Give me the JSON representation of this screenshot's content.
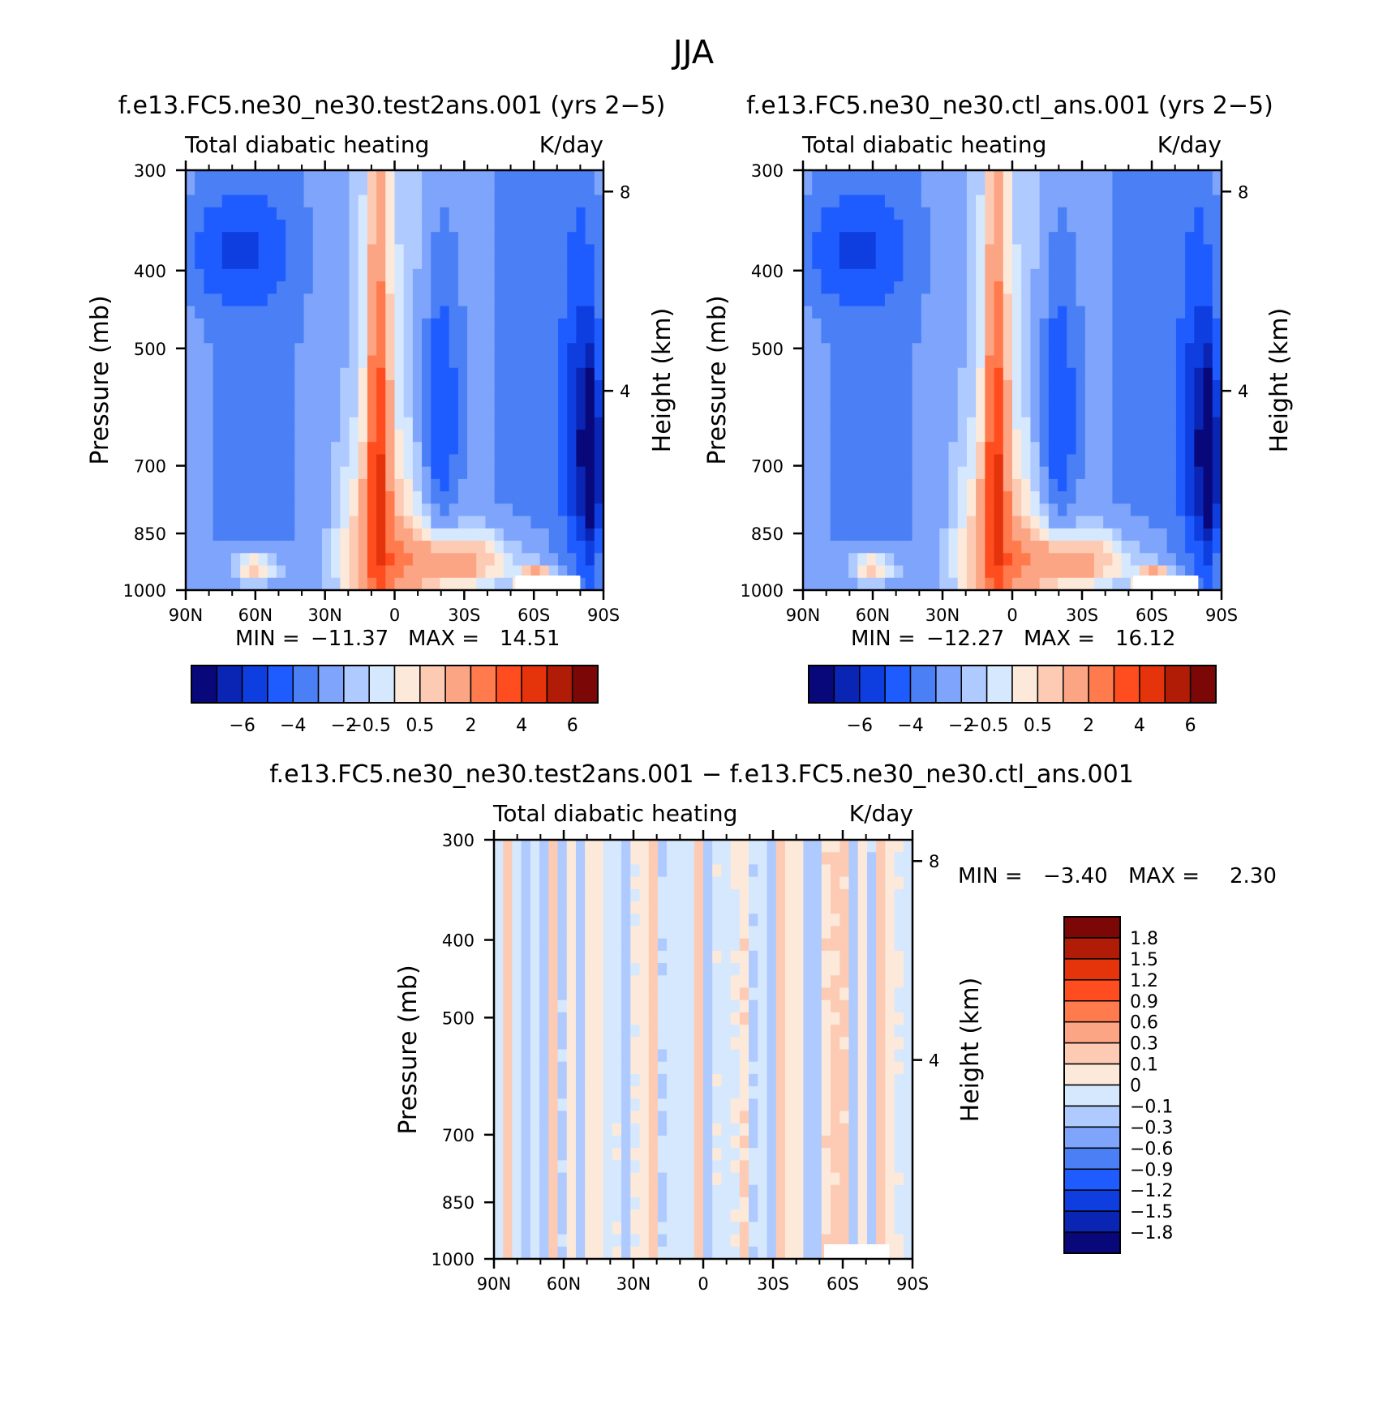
{
  "figure": {
    "title": "JJA"
  },
  "colors": {
    "ramp16": [
      "#08087a",
      "#0a25b4",
      "#0e3ee0",
      "#1f5cff",
      "#4a7ff5",
      "#7ea5fb",
      "#aecaff",
      "#d5e8fd",
      "#fde9da",
      "#fdcbb3",
      "#fba585",
      "#ff7b4d",
      "#ff4d1f",
      "#e5330c",
      "#b01c06",
      "#7c0707"
    ],
    "diff14": [
      "#08087a",
      "#0a25b4",
      "#0e3ee0",
      "#1f5cff",
      "#4a7ff5",
      "#7ea5fb",
      "#aecaff",
      "#d5e8fd",
      "#fde9da",
      "#fdcbb3",
      "#fba585",
      "#ff7b4d",
      "#ff4d1f",
      "#b01c06"
    ]
  },
  "chart_data": [
    {
      "type": "heatmap",
      "id": "test",
      "title": "f.e13.FC5.ne30_ne30.test2ans.001 (yrs 2−5)",
      "subtitle_left": "Total diabatic heating",
      "subtitle_right": "K/day",
      "ylabel": "Pressure (mb)",
      "ylabel_right": "Height (km)",
      "y_ticks": [
        "300",
        "400",
        "500",
        "700",
        "850",
        "1000"
      ],
      "y_tick_values": [
        300,
        400,
        500,
        700,
        850,
        1000
      ],
      "right_ticks": [
        "8",
        "4"
      ],
      "right_tick_values": [
        8,
        4
      ],
      "x_ticks": [
        "90N",
        "60N",
        "30N",
        "0",
        "30S",
        "60S",
        "90S"
      ],
      "x_tick_values": [
        90,
        60,
        30,
        0,
        -30,
        -60,
        -90
      ],
      "ylim": [
        1000,
        300
      ],
      "xlim": [
        90,
        -90
      ],
      "min_label": "MIN =",
      "min_value": "−11.37",
      "max_label": "MAX =",
      "max_value": "14.51",
      "colorbar_labels": [
        "−6",
        "−4",
        "−2",
        "−0.5",
        "0.5",
        "2",
        "4",
        "6"
      ],
      "features": [
        {
          "lat": 7,
          "p": 650,
          "w": 5,
          "h": 380,
          "level": 4
        },
        {
          "lat": 8,
          "p": 900,
          "w": 18,
          "h": 250,
          "level": 2
        },
        {
          "lat": -30,
          "p": 920,
          "w": 30,
          "h": 90,
          "level": 3
        },
        {
          "lat": -62,
          "p": 980,
          "w": 8,
          "h": 40,
          "level": 5
        },
        {
          "lat": 60,
          "p": 940,
          "w": 12,
          "h": 60,
          "level": 3
        },
        {
          "lat": -20,
          "p": 600,
          "w": 8,
          "h": 250,
          "level": -3
        },
        {
          "lat": -80,
          "p": 650,
          "w": 8,
          "h": 300,
          "level": -3
        },
        {
          "lat": -85,
          "p": 700,
          "w": 4,
          "h": 200,
          "level": -5
        },
        {
          "lat": 70,
          "p": 380,
          "w": 25,
          "h": 60,
          "level": -2
        }
      ]
    },
    {
      "type": "heatmap",
      "id": "ctl",
      "title": "f.e13.FC5.ne30_ne30.ctl_ans.001 (yrs 2−5)",
      "subtitle_left": "Total diabatic heating",
      "subtitle_right": "K/day",
      "ylabel": "Pressure (mb)",
      "ylabel_right": "Height (km)",
      "y_ticks": [
        "300",
        "400",
        "500",
        "700",
        "850",
        "1000"
      ],
      "y_tick_values": [
        300,
        400,
        500,
        700,
        850,
        1000
      ],
      "right_ticks": [
        "8",
        "4"
      ],
      "right_tick_values": [
        8,
        4
      ],
      "x_ticks": [
        "90N",
        "60N",
        "30N",
        "0",
        "30S",
        "60S",
        "90S"
      ],
      "x_tick_values": [
        90,
        60,
        30,
        0,
        -30,
        -60,
        -90
      ],
      "ylim": [
        1000,
        300
      ],
      "xlim": [
        90,
        -90
      ],
      "min_label": "MIN =",
      "min_value": "−12.27",
      "max_label": "MAX =",
      "max_value": "16.12",
      "colorbar_labels": [
        "−6",
        "−4",
        "−2",
        "−0.5",
        "0.5",
        "2",
        "4",
        "6"
      ],
      "features": [
        {
          "lat": 7,
          "p": 650,
          "w": 5,
          "h": 380,
          "level": 4
        },
        {
          "lat": 8,
          "p": 900,
          "w": 18,
          "h": 250,
          "level": 2
        },
        {
          "lat": -30,
          "p": 920,
          "w": 30,
          "h": 90,
          "level": 3
        },
        {
          "lat": -62,
          "p": 980,
          "w": 8,
          "h": 40,
          "level": 5
        },
        {
          "lat": 60,
          "p": 940,
          "w": 12,
          "h": 60,
          "level": 3
        },
        {
          "lat": -20,
          "p": 600,
          "w": 8,
          "h": 250,
          "level": -3
        },
        {
          "lat": -80,
          "p": 650,
          "w": 8,
          "h": 300,
          "level": -3
        },
        {
          "lat": -85,
          "p": 700,
          "w": 4,
          "h": 200,
          "level": -5
        },
        {
          "lat": 70,
          "p": 380,
          "w": 25,
          "h": 60,
          "level": -2
        }
      ]
    },
    {
      "type": "heatmap",
      "id": "diff",
      "title": "f.e13.FC5.ne30_ne30.test2ans.001 − f.e13.FC5.ne30_ne30.ctl_ans.001",
      "subtitle_left": "Total diabatic heating",
      "subtitle_right": "K/day",
      "ylabel": "Pressure (mb)",
      "ylabel_right": "Height (km)",
      "y_ticks": [
        "300",
        "400",
        "500",
        "700",
        "850",
        "1000"
      ],
      "y_tick_values": [
        300,
        400,
        500,
        700,
        850,
        1000
      ],
      "right_ticks": [
        "8",
        "4"
      ],
      "right_tick_values": [
        8,
        4
      ],
      "x_ticks": [
        "90N",
        "60N",
        "30N",
        "0",
        "30S",
        "60S",
        "90S"
      ],
      "x_tick_values": [
        90,
        60,
        30,
        0,
        -30,
        -60,
        -90
      ],
      "ylim": [
        1000,
        300
      ],
      "xlim": [
        90,
        -90
      ],
      "min_label": "MIN =",
      "min_value": "−3.40",
      "max_label": "MAX =",
      "max_value": "2.30",
      "colorbar_labels": [
        "1.8",
        "1.5",
        "1.2",
        "0.9",
        "0.6",
        "0.3",
        "0.1",
        "0",
        "−0.1",
        "−0.3",
        "−0.6",
        "−0.9",
        "−1.2",
        "−1.5",
        "−1.8"
      ]
    }
  ]
}
